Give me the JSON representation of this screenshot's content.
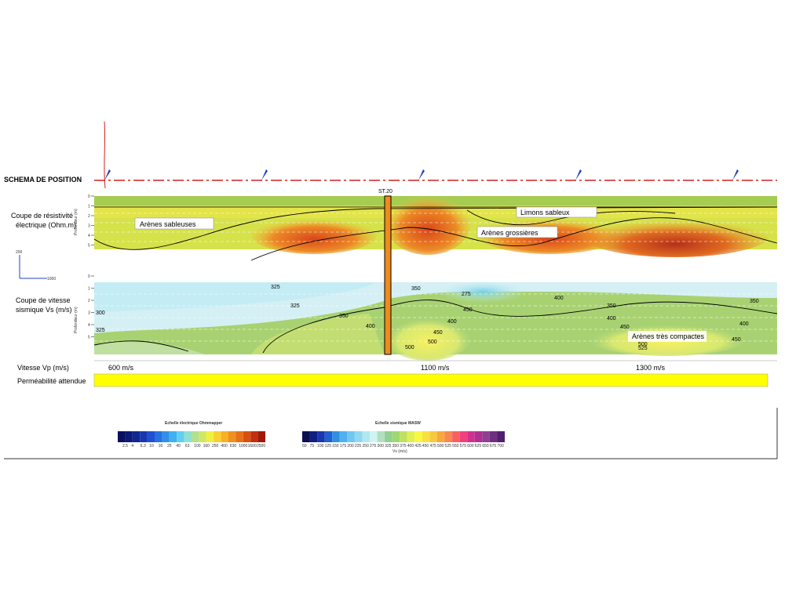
{
  "header": {
    "title": "SCHEMA DE POSITION"
  },
  "resistivity": {
    "title_lines": [
      "Coupe de résistivité",
      "électrique (Ohm.m)"
    ],
    "axis_label": "Profondeur (m)",
    "depth_ticks": [
      "0",
      "1",
      "2",
      "3",
      "4",
      "5"
    ],
    "layers": [
      "Arènes sableuses",
      "Limons sableux",
      "Arènes grossières"
    ]
  },
  "borehole": {
    "label": "ST.20"
  },
  "seismic": {
    "title_lines": [
      "Coupe de vitesse",
      "sismique Vs (m/s)"
    ],
    "axis_label": "Profondeur (m)",
    "depth_ticks": [
      "0",
      "1",
      "2",
      "3",
      "4",
      "5"
    ],
    "contours": [
      "325",
      "300",
      "325",
      "325",
      "350",
      "400",
      "350",
      "275",
      "400",
      "350",
      "400",
      "450",
      "450",
      "500",
      "500",
      "400",
      "450",
      "525",
      "500",
      "450",
      "400",
      "350"
    ],
    "layers": [
      "Arènes très compactes"
    ]
  },
  "vp_row": {
    "label": "Vitesse Vp (m/s)",
    "values": [
      "600 m/s",
      "1100 m/s",
      "1300 m/s"
    ]
  },
  "permeability": {
    "label": "Perméabilité attendue"
  },
  "scale": {
    "y": "200",
    "x": "1000"
  },
  "legends": [
    {
      "title": "Echelle électrique Ohmmapper",
      "ticks": [
        "2.5",
        "4",
        "6.3",
        "10",
        "16",
        "25",
        "40",
        "63",
        "100",
        "160",
        "250",
        "400",
        "630",
        "1000",
        "1600",
        "2500"
      ]
    },
    {
      "title": "Echelle sismique MASW",
      "unit": "Vs (m/s)",
      "ticks": [
        "50",
        "75",
        "100",
        "125",
        "150",
        "175",
        "200",
        "225",
        "250",
        "275",
        "300",
        "325",
        "350",
        "375",
        "400",
        "425",
        "450",
        "475",
        "500",
        "525",
        "550",
        "575",
        "600",
        "625",
        "650",
        "675",
        "700"
      ]
    }
  ]
}
